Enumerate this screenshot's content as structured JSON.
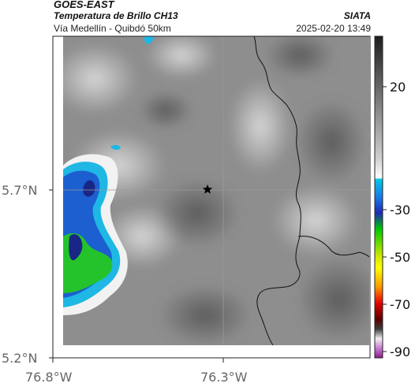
{
  "header": {
    "satellite": "GOES-EAST",
    "product": "Temperatura de Brillo CH13",
    "route": "Vía Medellín - Quibdó 50km",
    "organization": "SIATA",
    "datetime": "2025-02-20 13:49"
  },
  "map": {
    "lat_ticks": [
      "5.7°N",
      "5.2°N"
    ],
    "lon_ticks": [
      "76.8°W",
      "76.3°W"
    ],
    "gridlines": true,
    "marker": "star-marker",
    "colors": {
      "cloud_gray": "#8a8a8a",
      "cold_cloud_blue": "#1d6fd6",
      "cyan": "#19b8e6",
      "green": "#22c62a",
      "dark_blue": "#1a2a8c"
    }
  },
  "colorbar": {
    "tick_labels": [
      "20",
      "-30",
      "-50",
      "-70",
      "-90"
    ],
    "colors": [
      "#ffffff",
      "#1e1e1e",
      "#00b4dc",
      "#1e3cff",
      "#00c800",
      "#ffff00",
      "#ff6400",
      "#c80000",
      "#8c008c"
    ]
  }
}
